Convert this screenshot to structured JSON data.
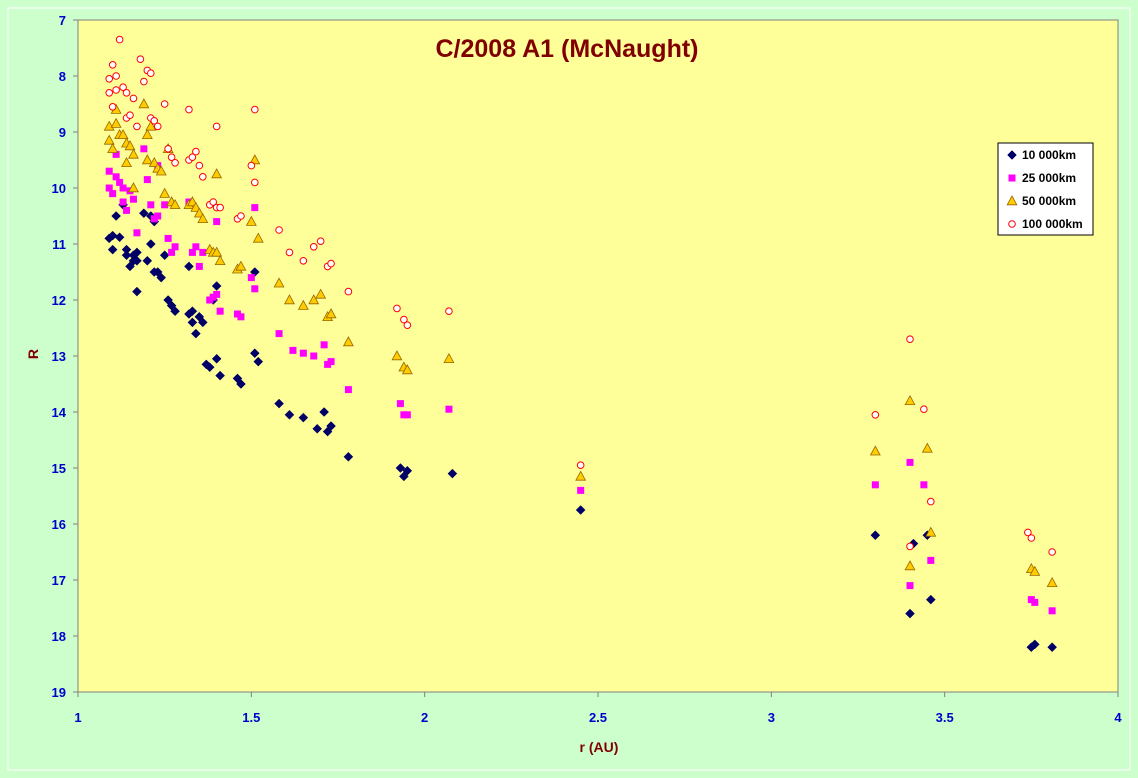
{
  "chart_data": {
    "type": "scatter",
    "title": "C/2008 A1 (McNaught)",
    "xlabel": "r (AU)",
    "ylabel": "R",
    "xlim": [
      1,
      4
    ],
    "ylim": [
      7,
      19
    ],
    "y_inverted": true,
    "x_ticks": [
      "1",
      "1.5",
      "2",
      "2.5",
      "3",
      "3.5",
      "4"
    ],
    "y_ticks": [
      "7",
      "8",
      "9",
      "10",
      "11",
      "12",
      "13",
      "14",
      "15",
      "16",
      "17",
      "18",
      "19"
    ],
    "grid": false,
    "legend_position": "top-right",
    "colors": {
      "page_background": "#ccffcc",
      "plot_background": "#ffff99",
      "title": "#800000",
      "axis_title": "#800000",
      "tick_labels": "#0000cc"
    },
    "series": [
      {
        "name": "10 000km",
        "marker": "diamond",
        "color": "#000066",
        "points": [
          [
            1.09,
            10.9
          ],
          [
            1.1,
            10.85
          ],
          [
            1.1,
            11.1
          ],
          [
            1.11,
            10.5
          ],
          [
            1.12,
            10.88
          ],
          [
            1.13,
            10.3
          ],
          [
            1.14,
            11.2
          ],
          [
            1.14,
            11.1
          ],
          [
            1.15,
            11.4
          ],
          [
            1.16,
            11.3
          ],
          [
            1.16,
            11.2
          ],
          [
            1.17,
            11.3
          ],
          [
            1.17,
            11.15
          ],
          [
            1.17,
            11.85
          ],
          [
            1.19,
            10.45
          ],
          [
            1.2,
            11.3
          ],
          [
            1.21,
            11.0
          ],
          [
            1.21,
            10.5
          ],
          [
            1.22,
            11.5
          ],
          [
            1.22,
            10.6
          ],
          [
            1.23,
            11.5
          ],
          [
            1.24,
            11.6
          ],
          [
            1.25,
            11.2
          ],
          [
            1.26,
            12.0
          ],
          [
            1.27,
            12.1
          ],
          [
            1.28,
            12.2
          ],
          [
            1.32,
            12.25
          ],
          [
            1.32,
            11.4
          ],
          [
            1.33,
            12.2
          ],
          [
            1.33,
            12.4
          ],
          [
            1.34,
            12.6
          ],
          [
            1.35,
            12.3
          ],
          [
            1.36,
            12.4
          ],
          [
            1.37,
            13.15
          ],
          [
            1.38,
            13.2
          ],
          [
            1.39,
            12.0
          ],
          [
            1.4,
            11.75
          ],
          [
            1.4,
            13.05
          ],
          [
            1.41,
            13.35
          ],
          [
            1.46,
            13.4
          ],
          [
            1.47,
            13.5
          ],
          [
            1.51,
            11.5
          ],
          [
            1.51,
            12.95
          ],
          [
            1.52,
            13.1
          ],
          [
            1.58,
            13.85
          ],
          [
            1.61,
            14.05
          ],
          [
            1.65,
            14.1
          ],
          [
            1.69,
            14.3
          ],
          [
            1.71,
            14.0
          ],
          [
            1.72,
            14.35
          ],
          [
            1.73,
            14.25
          ],
          [
            1.78,
            14.8
          ],
          [
            1.93,
            15.0
          ],
          [
            1.94,
            15.15
          ],
          [
            1.95,
            15.05
          ],
          [
            2.08,
            15.1
          ],
          [
            2.45,
            15.75
          ],
          [
            3.3,
            16.2
          ],
          [
            3.4,
            17.6
          ],
          [
            3.41,
            16.35
          ],
          [
            3.45,
            16.2
          ],
          [
            3.46,
            17.35
          ],
          [
            3.75,
            18.2
          ],
          [
            3.76,
            18.15
          ],
          [
            3.81,
            18.2
          ]
        ]
      },
      {
        "name": "25 000km",
        "marker": "square",
        "color": "#ff00ff",
        "points": [
          [
            1.09,
            9.7
          ],
          [
            1.09,
            10.0
          ],
          [
            1.1,
            10.1
          ],
          [
            1.11,
            9.8
          ],
          [
            1.11,
            9.4
          ],
          [
            1.12,
            9.9
          ],
          [
            1.13,
            10.25
          ],
          [
            1.13,
            10.0
          ],
          [
            1.14,
            10.4
          ],
          [
            1.15,
            10.05
          ],
          [
            1.16,
            10.2
          ],
          [
            1.17,
            10.8
          ],
          [
            1.19,
            9.3
          ],
          [
            1.2,
            9.85
          ],
          [
            1.21,
            10.3
          ],
          [
            1.22,
            10.55
          ],
          [
            1.23,
            10.5
          ],
          [
            1.23,
            9.6
          ],
          [
            1.25,
            10.3
          ],
          [
            1.26,
            10.9
          ],
          [
            1.27,
            11.15
          ],
          [
            1.28,
            11.05
          ],
          [
            1.32,
            10.25
          ],
          [
            1.33,
            11.15
          ],
          [
            1.34,
            11.05
          ],
          [
            1.35,
            11.4
          ],
          [
            1.36,
            11.15
          ],
          [
            1.38,
            12.0
          ],
          [
            1.39,
            11.95
          ],
          [
            1.4,
            10.6
          ],
          [
            1.4,
            11.9
          ],
          [
            1.41,
            12.2
          ],
          [
            1.46,
            12.25
          ],
          [
            1.47,
            12.3
          ],
          [
            1.5,
            11.6
          ],
          [
            1.51,
            10.35
          ],
          [
            1.51,
            11.8
          ],
          [
            1.58,
            12.6
          ],
          [
            1.62,
            12.9
          ],
          [
            1.65,
            12.95
          ],
          [
            1.68,
            13.0
          ],
          [
            1.71,
            12.8
          ],
          [
            1.72,
            13.15
          ],
          [
            1.73,
            13.1
          ],
          [
            1.78,
            13.6
          ],
          [
            1.93,
            13.85
          ],
          [
            1.94,
            14.05
          ],
          [
            1.95,
            14.05
          ],
          [
            2.07,
            13.95
          ],
          [
            2.45,
            15.4
          ],
          [
            3.3,
            15.3
          ],
          [
            3.4,
            14.9
          ],
          [
            3.4,
            17.1
          ],
          [
            3.44,
            15.3
          ],
          [
            3.46,
            16.65
          ],
          [
            3.75,
            17.35
          ],
          [
            3.76,
            17.4
          ],
          [
            3.81,
            17.55
          ]
        ]
      },
      {
        "name": "50 000km",
        "marker": "triangle",
        "color": "#ffcc00",
        "points": [
          [
            1.09,
            8.9
          ],
          [
            1.09,
            9.15
          ],
          [
            1.1,
            9.3
          ],
          [
            1.11,
            8.6
          ],
          [
            1.11,
            8.85
          ],
          [
            1.12,
            9.05
          ],
          [
            1.13,
            9.05
          ],
          [
            1.14,
            9.2
          ],
          [
            1.14,
            9.55
          ],
          [
            1.15,
            9.25
          ],
          [
            1.16,
            9.4
          ],
          [
            1.16,
            10.0
          ],
          [
            1.19,
            8.5
          ],
          [
            1.2,
            9.05
          ],
          [
            1.2,
            9.5
          ],
          [
            1.21,
            8.9
          ],
          [
            1.22,
            9.55
          ],
          [
            1.23,
            9.65
          ],
          [
            1.24,
            9.7
          ],
          [
            1.25,
            10.1
          ],
          [
            1.26,
            9.3
          ],
          [
            1.27,
            10.25
          ],
          [
            1.28,
            10.3
          ],
          [
            1.32,
            10.3
          ],
          [
            1.33,
            10.25
          ],
          [
            1.34,
            10.35
          ],
          [
            1.35,
            10.45
          ],
          [
            1.36,
            10.55
          ],
          [
            1.38,
            11.1
          ],
          [
            1.39,
            11.15
          ],
          [
            1.4,
            11.15
          ],
          [
            1.4,
            9.75
          ],
          [
            1.41,
            11.3
          ],
          [
            1.46,
            11.45
          ],
          [
            1.47,
            11.4
          ],
          [
            1.5,
            10.6
          ],
          [
            1.51,
            9.5
          ],
          [
            1.52,
            10.9
          ],
          [
            1.58,
            11.7
          ],
          [
            1.61,
            12.0
          ],
          [
            1.65,
            12.1
          ],
          [
            1.68,
            12.0
          ],
          [
            1.7,
            11.9
          ],
          [
            1.72,
            12.3
          ],
          [
            1.73,
            12.25
          ],
          [
            1.78,
            12.75
          ],
          [
            1.92,
            13.0
          ],
          [
            1.94,
            13.2
          ],
          [
            1.95,
            13.25
          ],
          [
            2.07,
            13.05
          ],
          [
            2.45,
            15.15
          ],
          [
            3.3,
            14.7
          ],
          [
            3.4,
            13.8
          ],
          [
            3.4,
            16.75
          ],
          [
            3.45,
            14.65
          ],
          [
            3.46,
            16.15
          ],
          [
            3.75,
            16.8
          ],
          [
            3.76,
            16.85
          ],
          [
            3.81,
            17.05
          ]
        ]
      },
      {
        "name": "100 000km",
        "marker": "circle",
        "color": "#ff0000",
        "points": [
          [
            1.09,
            8.05
          ],
          [
            1.09,
            8.3
          ],
          [
            1.1,
            7.8
          ],
          [
            1.1,
            8.55
          ],
          [
            1.11,
            8.0
          ],
          [
            1.11,
            8.25
          ],
          [
            1.12,
            7.35
          ],
          [
            1.13,
            8.2
          ],
          [
            1.14,
            8.3
          ],
          [
            1.14,
            8.75
          ],
          [
            1.15,
            8.7
          ],
          [
            1.16,
            8.4
          ],
          [
            1.17,
            8.9
          ],
          [
            1.18,
            7.7
          ],
          [
            1.19,
            8.1
          ],
          [
            1.2,
            7.9
          ],
          [
            1.21,
            7.95
          ],
          [
            1.21,
            8.75
          ],
          [
            1.22,
            8.8
          ],
          [
            1.23,
            8.9
          ],
          [
            1.25,
            8.5
          ],
          [
            1.26,
            9.3
          ],
          [
            1.27,
            9.45
          ],
          [
            1.28,
            9.55
          ],
          [
            1.32,
            8.6
          ],
          [
            1.32,
            9.5
          ],
          [
            1.33,
            9.45
          ],
          [
            1.34,
            9.35
          ],
          [
            1.35,
            9.6
          ],
          [
            1.36,
            9.8
          ],
          [
            1.38,
            10.3
          ],
          [
            1.39,
            10.25
          ],
          [
            1.4,
            8.9
          ],
          [
            1.4,
            10.35
          ],
          [
            1.41,
            10.35
          ],
          [
            1.46,
            10.55
          ],
          [
            1.47,
            10.5
          ],
          [
            1.5,
            9.6
          ],
          [
            1.51,
            8.6
          ],
          [
            1.51,
            9.9
          ],
          [
            1.58,
            10.75
          ],
          [
            1.61,
            11.15
          ],
          [
            1.65,
            11.3
          ],
          [
            1.68,
            11.05
          ],
          [
            1.7,
            10.95
          ],
          [
            1.72,
            11.4
          ],
          [
            1.73,
            11.35
          ],
          [
            1.78,
            11.85
          ],
          [
            1.92,
            12.15
          ],
          [
            1.94,
            12.35
          ],
          [
            1.95,
            12.45
          ],
          [
            2.07,
            12.2
          ],
          [
            2.45,
            14.95
          ],
          [
            3.3,
            14.05
          ],
          [
            3.4,
            12.7
          ],
          [
            3.4,
            16.4
          ],
          [
            3.44,
            13.95
          ],
          [
            3.46,
            15.6
          ],
          [
            3.74,
            16.15
          ],
          [
            3.75,
            16.25
          ],
          [
            3.81,
            16.5
          ]
        ]
      }
    ]
  }
}
